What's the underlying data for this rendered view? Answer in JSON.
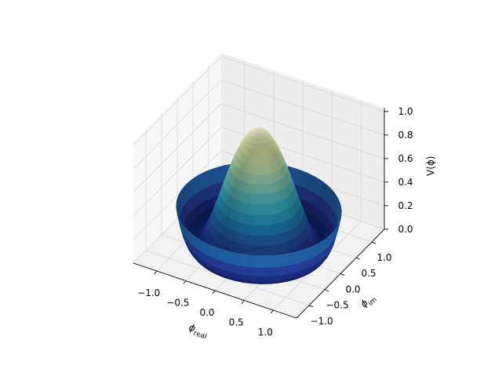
{
  "chart_data": {
    "type": "surface3d",
    "function": "V = (1 - r^2)^2, r = |phi|",
    "colormap": "YlGnBu",
    "colors": {
      "low": "#081d58",
      "high": "#ffffd9",
      "pane": "#f2f2f2",
      "grid": "#d6d6d6"
    },
    "xlabel": {
      "symbol": "ϕ",
      "subscript": "real"
    },
    "ylabel": {
      "symbol": "ϕ",
      "subscript": "im"
    },
    "zlabel": "V(ϕ)",
    "xlim": [
      -1.4,
      1.4
    ],
    "ylim": [
      -1.4,
      1.4
    ],
    "zlim": [
      0,
      1.0
    ],
    "r_range": [
      0,
      1.25
    ],
    "xticks": [
      -1.0,
      -0.5,
      0.0,
      0.5,
      1.0
    ],
    "yticks": [
      -1.0,
      -0.5,
      0.0,
      0.5,
      1.0
    ],
    "zticks": [
      0.0,
      0.2,
      0.4,
      0.6,
      0.8,
      1.0
    ],
    "xtick_labels": [
      "−1.0",
      "−0.5",
      "0.0",
      "0.5",
      "1.0"
    ],
    "ytick_labels": [
      "−1.0",
      "−0.5",
      "0.0",
      "0.5",
      "1.0"
    ],
    "ztick_labels": [
      "0.0",
      "0.2",
      "0.4",
      "0.6",
      "0.8",
      "1.0"
    ],
    "grid": true
  }
}
